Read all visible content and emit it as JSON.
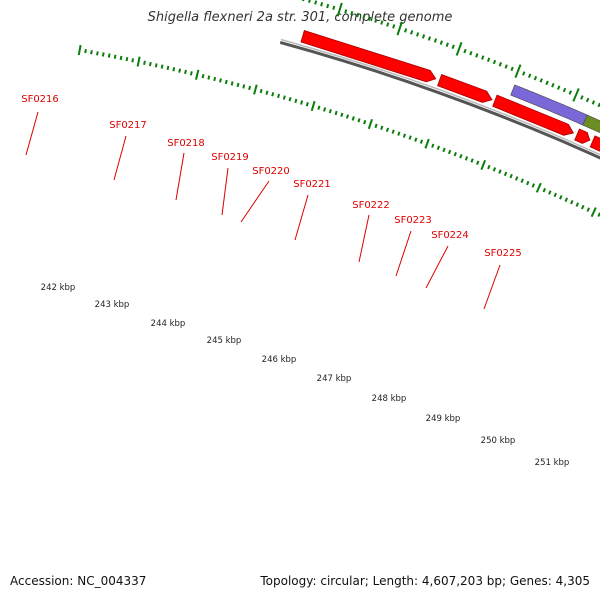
{
  "title": "Shigella flexneri 2a str. 301, complete genome",
  "footer": {
    "accession": "Accession: NC_004337",
    "summary": "Topology: circular; Length: 4,607,203 bp; Genes: 4,305"
  },
  "colors": {
    "gene": "#ff0000",
    "backbone": "#888888",
    "ticks": "#0a7d0a",
    "purple_feature": "#7b68d8",
    "green_feature": "#6b8e23"
  },
  "genes": [
    "SF0216",
    "SF0217",
    "SF0218",
    "SF0219",
    "SF0220",
    "SF0221",
    "SF0222",
    "SF0223",
    "SF0224",
    "SF0225"
  ],
  "kbp_labels": [
    "242 kbp",
    "243 kbp",
    "244 kbp",
    "245 kbp",
    "246 kbp",
    "247 kbp",
    "248 kbp",
    "249 kbp",
    "250 kbp",
    "251 kbp"
  ]
}
